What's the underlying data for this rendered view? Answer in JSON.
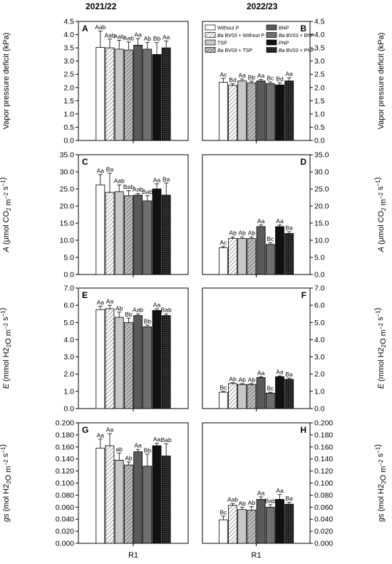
{
  "figure": {
    "year_left": "2021/22",
    "year_right": "2022/23",
    "x_tick_label": "R1"
  },
  "legend": [
    {
      "label": "Without P",
      "fill": "white"
    },
    {
      "label": "Ba BV03 + Without P",
      "fill": "hatch-white"
    },
    {
      "label": "TSP",
      "fill": "#c8c8c8"
    },
    {
      "label": "Ba BV03 + TSP",
      "fill": "hatch-gray"
    },
    {
      "label": "BNP",
      "fill": "#5a5a5a"
    },
    {
      "label": "Ba BV03 + BNP",
      "fill": "#6e6e6e"
    },
    {
      "label": "PNP",
      "fill": "#111111"
    },
    {
      "label": "Ba BV03 + PNP",
      "fill": "dots-black"
    }
  ],
  "chart_data": [
    {
      "type": "bar",
      "panel": "A",
      "year": "2021/22",
      "side": "left",
      "ylabel": "Vapor pressure deficit (kPa)",
      "ylim": [
        0,
        4.5
      ],
      "yticks": [
        "0.0",
        "0.5",
        "1.0",
        "1.5",
        "2.0",
        "2.5",
        "3.0",
        "3.5",
        "4.0",
        "4.5"
      ],
      "categories": [
        "R1"
      ],
      "show_legend": false,
      "series": [
        {
          "name": "Without P",
          "value": 3.52,
          "err": 0.62,
          "letter": "Aab"
        },
        {
          "name": "Ba BV03 + Without P",
          "value": 3.5,
          "err": 0.33,
          "letter": "Aab"
        },
        {
          "name": "TSP",
          "value": 3.45,
          "err": 0.34,
          "letter": "Aab"
        },
        {
          "name": "Ba BV03 + TSP",
          "value": 3.42,
          "err": 0.3,
          "letter": "Aab"
        },
        {
          "name": "BNP",
          "value": 3.6,
          "err": 0.25,
          "letter": "Aa"
        },
        {
          "name": "Ba BV03 + BNP",
          "value": 3.45,
          "err": 0.26,
          "letter": "Ab"
        },
        {
          "name": "PNP",
          "value": 3.25,
          "err": 0.45,
          "letter": "Bb"
        },
        {
          "name": "Ba BV03 + PNP",
          "value": 3.5,
          "err": 0.26,
          "letter": "Aa"
        }
      ]
    },
    {
      "type": "bar",
      "panel": "B",
      "year": "2022/23",
      "side": "right",
      "ylabel": "Vapor pressure deficit (kPa)",
      "ylim": [
        0,
        4.5
      ],
      "yticks": [
        "0.0",
        "0.5",
        "1.0",
        "1.5",
        "2.0",
        "2.5",
        "3.0",
        "3.5",
        "4.0",
        "4.5"
      ],
      "categories": [
        "R1"
      ],
      "show_legend": true,
      "series": [
        {
          "name": "Without P",
          "value": 2.2,
          "err": 0.15,
          "letter": "Ac"
        },
        {
          "name": "Ba BV03 + Without P",
          "value": 2.08,
          "err": 0.06,
          "letter": "Bd"
        },
        {
          "name": "TSP",
          "value": 2.25,
          "err": 0.07,
          "letter": "Aa"
        },
        {
          "name": "Ba BV03 + TSP",
          "value": 2.18,
          "err": 0.06,
          "letter": "Bb"
        },
        {
          "name": "BNP",
          "value": 2.25,
          "err": 0.05,
          "letter": "Aa"
        },
        {
          "name": "Ba BV03 + BNP",
          "value": 2.15,
          "err": 0.06,
          "letter": "Bc"
        },
        {
          "name": "PNP",
          "value": 2.1,
          "err": 0.08,
          "letter": "Bd"
        },
        {
          "name": "Ba BV03 + PNP",
          "value": 2.25,
          "err": 0.12,
          "letter": "Aa"
        }
      ]
    },
    {
      "type": "bar",
      "panel": "C",
      "year": "2021/22",
      "side": "left",
      "ylabel": "A (μmol CO2 m−2 s−1)",
      "ylim": [
        0,
        35
      ],
      "yticks": [
        "0.0",
        "5.0",
        "10.0",
        "15.0",
        "20.0",
        "25.0",
        "30.0",
        "35.0"
      ],
      "categories": [
        "R1"
      ],
      "show_legend": false,
      "series": [
        {
          "name": "Without P",
          "value": 26.2,
          "err": 3.0,
          "letter": "Aa"
        },
        {
          "name": "Ba BV03 + Without P",
          "value": 24.0,
          "err": 5.6,
          "letter": "Ba"
        },
        {
          "name": "TSP",
          "value": 24.2,
          "err": 2.0,
          "letter": "Aab"
        },
        {
          "name": "Ba BV03 + TSP",
          "value": 23.0,
          "err": 1.5,
          "letter": "Bab"
        },
        {
          "name": "BNP",
          "value": 23.2,
          "err": 0.5,
          "letter": "Aab"
        },
        {
          "name": "Ba BV03 + BNP",
          "value": 21.5,
          "err": 1.5,
          "letter": "Bab"
        },
        {
          "name": "PNP",
          "value": 25.0,
          "err": 1.5,
          "letter": "Aa"
        },
        {
          "name": "Ba BV03 + PNP",
          "value": 23.2,
          "err": 3.5,
          "letter": "Ba"
        }
      ]
    },
    {
      "type": "bar",
      "panel": "D",
      "year": "2022/23",
      "side": "right",
      "ylabel": "A (μmol CO2 m−2 s−1)",
      "ylim": [
        0,
        35
      ],
      "yticks": [
        "0.0",
        "5.0",
        "10.0",
        "15.0",
        "20.0",
        "25.0",
        "30.0",
        "35.0"
      ],
      "categories": [
        "R1"
      ],
      "show_legend": false,
      "series": [
        {
          "name": "Without P",
          "value": 7.8,
          "err": 0.4,
          "letter": "Ac"
        },
        {
          "name": "Ba BV03 + Without P",
          "value": 10.5,
          "err": 0.5,
          "letter": "Ab"
        },
        {
          "name": "TSP",
          "value": 10.5,
          "err": 0.5,
          "letter": "Ab"
        },
        {
          "name": "Ba BV03 + TSP",
          "value": 10.5,
          "err": 0.5,
          "letter": "Ab"
        },
        {
          "name": "BNP",
          "value": 14.0,
          "err": 0.5,
          "letter": "Aa"
        },
        {
          "name": "Ba BV03 + BNP",
          "value": 8.8,
          "err": 0.5,
          "letter": "Bc"
        },
        {
          "name": "PNP",
          "value": 14.0,
          "err": 0.5,
          "letter": "Aa"
        },
        {
          "name": "Ba BV03 + PNP",
          "value": 12.0,
          "err": 0.5,
          "letter": "Ba"
        }
      ]
    },
    {
      "type": "bar",
      "panel": "E",
      "year": "2021/22",
      "side": "left",
      "ylabel": "E (mmol H2O m−2 s−1)",
      "ylim": [
        0,
        7
      ],
      "yticks": [
        "0.0",
        "1.0",
        "2.0",
        "3.0",
        "4.0",
        "5.0",
        "6.0",
        "7.0"
      ],
      "categories": [
        "R1"
      ],
      "show_legend": false,
      "series": [
        {
          "name": "Without P",
          "value": 5.75,
          "err": 0.2,
          "letter": "Aa"
        },
        {
          "name": "Ba BV03 + Without P",
          "value": 5.8,
          "err": 0.2,
          "letter": "Aa"
        },
        {
          "name": "TSP",
          "value": 5.3,
          "err": 0.3,
          "letter": "Ab"
        },
        {
          "name": "Ba BV03 + TSP",
          "value": 5.0,
          "err": 0.25,
          "letter": "Bb"
        },
        {
          "name": "BNP",
          "value": 5.4,
          "err": 0.1,
          "letter": "Aab"
        },
        {
          "name": "Ba BV03 + BNP",
          "value": 4.75,
          "err": 0.1,
          "letter": "Bb"
        },
        {
          "name": "PNP",
          "value": 5.7,
          "err": 0.1,
          "letter": "Aa"
        },
        {
          "name": "Ba BV03 + PNP",
          "value": 5.4,
          "err": 0.1,
          "letter": "Bab"
        }
      ]
    },
    {
      "type": "bar",
      "panel": "F",
      "year": "2022/23",
      "side": "right",
      "ylabel": "E (mmol H2O m−2 s−1)",
      "ylim": [
        0,
        7
      ],
      "yticks": [
        "0.0",
        "1.0",
        "2.0",
        "3.0",
        "4.0",
        "5.0",
        "6.0",
        "7.0"
      ],
      "categories": [
        "R1"
      ],
      "show_legend": false,
      "series": [
        {
          "name": "Without P",
          "value": 0.95,
          "err": 0.05,
          "letter": "Bc"
        },
        {
          "name": "Ba BV03 + Without P",
          "value": 1.45,
          "err": 0.05,
          "letter": "Ab"
        },
        {
          "name": "TSP",
          "value": 1.4,
          "err": 0.05,
          "letter": "Ab"
        },
        {
          "name": "Ba BV03 + TSP",
          "value": 1.4,
          "err": 0.05,
          "letter": "Ab"
        },
        {
          "name": "BNP",
          "value": 1.8,
          "err": 0.05,
          "letter": "Aa"
        },
        {
          "name": "Ba BV03 + BNP",
          "value": 0.9,
          "err": 0.05,
          "letter": "Bc"
        },
        {
          "name": "PNP",
          "value": 1.85,
          "err": 0.05,
          "letter": "Aa"
        },
        {
          "name": "Ba BV03 + PNP",
          "value": 1.7,
          "err": 0.07,
          "letter": "Ba"
        }
      ]
    },
    {
      "type": "bar",
      "panel": "G",
      "year": "2021/22",
      "side": "left",
      "ylabel": "gs (mol H2O m−2 s−1)",
      "ylim": [
        0,
        0.2
      ],
      "yticks": [
        "0.000",
        "0.020",
        "0.040",
        "0.060",
        "0.080",
        "0.100",
        "0.120",
        "0.140",
        "0.160",
        "0.180",
        "0.200"
      ],
      "categories": [
        "R1"
      ],
      "show_legend": false,
      "series": [
        {
          "name": "Without P",
          "value": 0.158,
          "err": 0.015,
          "letter": "Aa"
        },
        {
          "name": "Ba BV03 + Without P",
          "value": 0.162,
          "err": 0.02,
          "letter": "Aa"
        },
        {
          "name": "TSP",
          "value": 0.138,
          "err": 0.012,
          "letter": "ab"
        },
        {
          "name": "Ba BV03 + TSP",
          "value": 0.13,
          "err": 0.005,
          "letter": "Ab"
        },
        {
          "name": "BNP",
          "value": 0.152,
          "err": 0.004,
          "letter": "Aa"
        },
        {
          "name": "Ba BV03 + BNP",
          "value": 0.128,
          "err": 0.02,
          "letter": "Bb"
        },
        {
          "name": "PNP",
          "value": 0.162,
          "err": 0.004,
          "letter": "Aa"
        },
        {
          "name": "Ba BV03 + PNP",
          "value": 0.145,
          "err": 0.02,
          "letter": "Bab"
        }
      ]
    },
    {
      "type": "bar",
      "panel": "H",
      "year": "2022/23",
      "side": "right",
      "ylabel": "gs (mol H2O m−2 s−1)",
      "ylim": [
        0,
        0.2
      ],
      "yticks": [
        "0.000",
        "0.020",
        "0.040",
        "0.060",
        "0.080",
        "0.100",
        "0.120",
        "0.140",
        "0.160",
        "0.180",
        "0.200"
      ],
      "categories": [
        "R1"
      ],
      "show_legend": false,
      "series": [
        {
          "name": "Without P",
          "value": 0.039,
          "err": 0.006,
          "letter": "Bc"
        },
        {
          "name": "Ba BV03 + Without P",
          "value": 0.063,
          "err": 0.003,
          "letter": "Aab"
        },
        {
          "name": "TSP",
          "value": 0.056,
          "err": 0.004,
          "letter": "Ab"
        },
        {
          "name": "Ba BV03 + TSP",
          "value": 0.055,
          "err": 0.006,
          "letter": "Ab"
        },
        {
          "name": "BNP",
          "value": 0.073,
          "err": 0.004,
          "letter": "Aa"
        },
        {
          "name": "Ba BV03 + BNP",
          "value": 0.06,
          "err": 0.004,
          "letter": "Bab"
        },
        {
          "name": "PNP",
          "value": 0.073,
          "err": 0.008,
          "letter": "Aa"
        },
        {
          "name": "Ba BV03 + PNP",
          "value": 0.065,
          "err": 0.003,
          "letter": "Ba"
        }
      ]
    }
  ]
}
